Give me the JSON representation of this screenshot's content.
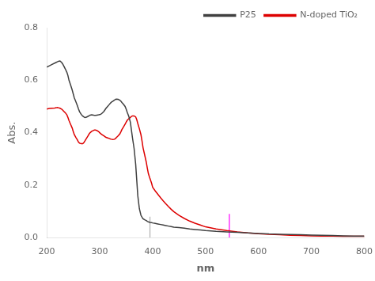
{
  "chart_data": {
    "type": "line",
    "xlabel": "nm",
    "ylabel": "Abs.",
    "xlim": [
      200,
      800
    ],
    "ylim": [
      0.0,
      0.8
    ],
    "xticks": [
      200,
      300,
      400,
      500,
      600,
      700,
      800
    ],
    "yticks": [
      {
        "value": 0.0,
        "label": "0.0"
      },
      0.2,
      0.4,
      0.6,
      0.8
    ],
    "grid": false,
    "legend": "upper right",
    "series": [
      {
        "name": "P25",
        "color": "#404040",
        "x": [
          200,
          205,
          210,
          215,
          218,
          220,
          222,
          225,
          228,
          230,
          232,
          235,
          238,
          240,
          242,
          245,
          248,
          250,
          252,
          255,
          258,
          260,
          262,
          265,
          268,
          270,
          272,
          275,
          278,
          280,
          282,
          285,
          288,
          290,
          292,
          295,
          298,
          300,
          302,
          305,
          308,
          310,
          312,
          315,
          318,
          320,
          322,
          325,
          328,
          330,
          332,
          335,
          338,
          340,
          342,
          345,
          348,
          350,
          352,
          355,
          358,
          360,
          362,
          365,
          368,
          370,
          372,
          375,
          378,
          380,
          382,
          385,
          388,
          390,
          392,
          395,
          398,
          400,
          405,
          410,
          415,
          420,
          425,
          430,
          435,
          440,
          450,
          460,
          470,
          480,
          490,
          500,
          520,
          540,
          560,
          580,
          600,
          620,
          640,
          660,
          680,
          700,
          720,
          740,
          760,
          780,
          800
        ],
        "values": [
          0.65,
          0.655,
          0.66,
          0.665,
          0.668,
          0.67,
          0.672,
          0.673,
          0.668,
          0.662,
          0.655,
          0.643,
          0.63,
          0.618,
          0.6,
          0.582,
          0.563,
          0.548,
          0.533,
          0.518,
          0.502,
          0.49,
          0.48,
          0.47,
          0.463,
          0.46,
          0.458,
          0.459,
          0.462,
          0.465,
          0.467,
          0.468,
          0.467,
          0.466,
          0.466,
          0.467,
          0.468,
          0.469,
          0.47,
          0.475,
          0.481,
          0.487,
          0.493,
          0.5,
          0.507,
          0.512,
          0.516,
          0.52,
          0.524,
          0.527,
          0.528,
          0.527,
          0.524,
          0.52,
          0.515,
          0.508,
          0.5,
          0.49,
          0.478,
          0.462,
          0.44,
          0.41,
          0.38,
          0.34,
          0.28,
          0.22,
          0.16,
          0.11,
          0.085,
          0.078,
          0.072,
          0.068,
          0.065,
          0.062,
          0.06,
          0.058,
          0.057,
          0.056,
          0.054,
          0.052,
          0.05,
          0.048,
          0.046,
          0.044,
          0.042,
          0.04,
          0.038,
          0.036,
          0.033,
          0.031,
          0.029,
          0.027,
          0.024,
          0.022,
          0.02,
          0.018,
          0.016,
          0.014,
          0.013,
          0.012,
          0.011,
          0.01,
          0.009,
          0.008,
          0.007,
          0.006,
          0.006
        ]
      },
      {
        "name": "N-doped TiO₂",
        "color": "#dd0000",
        "x": [
          200,
          205,
          210,
          215,
          218,
          220,
          222,
          225,
          228,
          230,
          232,
          235,
          238,
          240,
          242,
          245,
          248,
          250,
          252,
          255,
          258,
          260,
          262,
          265,
          268,
          270,
          272,
          275,
          278,
          280,
          282,
          285,
          288,
          290,
          292,
          295,
          298,
          300,
          302,
          305,
          308,
          310,
          312,
          315,
          318,
          320,
          322,
          325,
          328,
          330,
          332,
          335,
          338,
          340,
          342,
          345,
          348,
          350,
          352,
          355,
          358,
          360,
          362,
          365,
          368,
          370,
          372,
          375,
          378,
          380,
          382,
          385,
          388,
          390,
          392,
          395,
          398,
          400,
          405,
          410,
          415,
          420,
          425,
          430,
          435,
          440,
          450,
          460,
          470,
          480,
          490,
          500,
          520,
          540,
          560,
          580,
          600,
          620,
          640,
          660,
          680,
          700,
          720,
          740,
          760,
          780,
          800
        ],
        "values": [
          0.49,
          0.492,
          0.493,
          0.494,
          0.495,
          0.496,
          0.495,
          0.493,
          0.49,
          0.486,
          0.482,
          0.476,
          0.468,
          0.458,
          0.446,
          0.432,
          0.418,
          0.405,
          0.393,
          0.382,
          0.372,
          0.364,
          0.36,
          0.358,
          0.358,
          0.362,
          0.368,
          0.378,
          0.388,
          0.395,
          0.4,
          0.405,
          0.408,
          0.41,
          0.41,
          0.408,
          0.404,
          0.4,
          0.396,
          0.392,
          0.388,
          0.385,
          0.382,
          0.38,
          0.378,
          0.376,
          0.375,
          0.374,
          0.375,
          0.378,
          0.382,
          0.388,
          0.395,
          0.403,
          0.412,
          0.422,
          0.432,
          0.44,
          0.447,
          0.453,
          0.458,
          0.462,
          0.464,
          0.464,
          0.46,
          0.45,
          0.435,
          0.415,
          0.392,
          0.368,
          0.342,
          0.315,
          0.288,
          0.265,
          0.244,
          0.225,
          0.208,
          0.192,
          0.178,
          0.165,
          0.152,
          0.14,
          0.129,
          0.118,
          0.108,
          0.099,
          0.085,
          0.073,
          0.063,
          0.055,
          0.048,
          0.041,
          0.033,
          0.027,
          0.022,
          0.018,
          0.015,
          0.013,
          0.011,
          0.009,
          0.008,
          0.007,
          0.006,
          0.006,
          0.005,
          0.005,
          0.005
        ]
      },
      {
        "color": "#b0b0b0",
        "x": [
          395,
          395
        ],
        "values": [
          0.0,
          0.08
        ]
      },
      {
        "color": "#ff00ff",
        "x": [
          545,
          545
        ],
        "values": [
          0.0,
          0.09
        ]
      }
    ]
  }
}
